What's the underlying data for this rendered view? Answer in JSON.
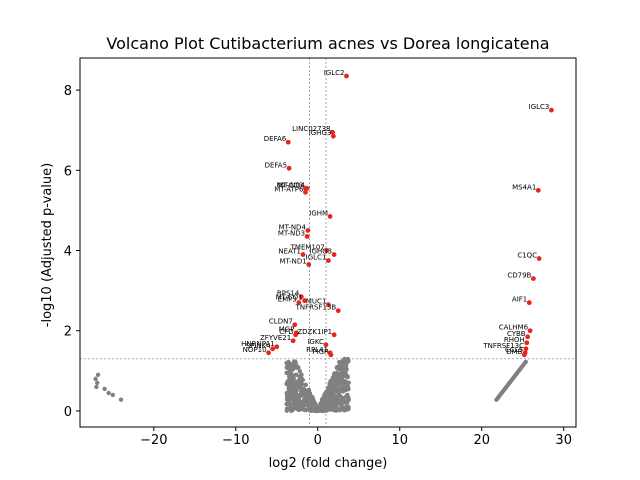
{
  "chart_data": {
    "type": "scatter",
    "title": "Volcano Plot Cutibacterium acnes vs Dorea longicatena",
    "xlabel": "log2 (fold change)",
    "ylabel": "-log10 (Adjusted p-value)",
    "xlim": [
      -29,
      31.5
    ],
    "ylim": [
      -0.4,
      8.8
    ],
    "xticks": [
      -20,
      -10,
      0,
      10,
      20,
      30
    ],
    "yticks": [
      0,
      2,
      4,
      6,
      8
    ],
    "grid": false,
    "thresholds": {
      "pvalue_line_y": 1.3,
      "fold_change_lines_x": [
        -1,
        1
      ]
    },
    "colors": {
      "significant": "#e8251c",
      "not_significant": "#808080",
      "threshold_line": "#808080"
    },
    "significant_genes": [
      {
        "label": "IGLC2",
        "x": 3.5,
        "y": 8.35
      },
      {
        "label": "IGLC3",
        "x": 28.5,
        "y": 7.5
      },
      {
        "label": "LINC02738",
        "x": 1.8,
        "y": 6.95
      },
      {
        "label": "IGHG3",
        "x": 1.9,
        "y": 6.85
      },
      {
        "label": "DEFA6",
        "x": -3.6,
        "y": 6.7
      },
      {
        "label": "DEFA5",
        "x": -3.5,
        "y": 6.05
      },
      {
        "label": "MS4A1",
        "x": 26.9,
        "y": 5.5
      },
      {
        "label": "MT-ND4",
        "x": -1.3,
        "y": 5.55
      },
      {
        "label": "MT-CO3",
        "x": -1.5,
        "y": 5.55
      },
      {
        "label": "MT-ATP6",
        "x": -1.5,
        "y": 5.45
      },
      {
        "label": "IGHM",
        "x": 1.5,
        "y": 4.85
      },
      {
        "label": "MT-ND4",
        "x": -1.2,
        "y": 4.5
      },
      {
        "label": "MT-ND3",
        "x": -1.3,
        "y": 4.35
      },
      {
        "label": "TMEM107",
        "x": 1.1,
        "y": 4.0
      },
      {
        "label": "IGHG3",
        "x": 2.0,
        "y": 3.9
      },
      {
        "label": "NEAT1",
        "x": -1.8,
        "y": 3.9
      },
      {
        "label": "IGLC1",
        "x": 1.3,
        "y": 3.75
      },
      {
        "label": "MT-ND1",
        "x": -1.1,
        "y": 3.65
      },
      {
        "label": "C1QC",
        "x": 27.0,
        "y": 3.8
      },
      {
        "label": "CD79B",
        "x": 26.3,
        "y": 3.3
      },
      {
        "label": "AIF1",
        "x": 25.8,
        "y": 2.7
      },
      {
        "label": "MUC1",
        "x": 1.3,
        "y": 2.65
      },
      {
        "label": "TNFRSF13B",
        "x": 2.5,
        "y": 2.5
      },
      {
        "label": "RPS14",
        "x": -2.0,
        "y": 2.85
      },
      {
        "label": "MT-CO1",
        "x": -1.6,
        "y": 2.75
      },
      {
        "label": "EMP3",
        "x": -2.3,
        "y": 2.7
      },
      {
        "label": "CLDN7",
        "x": -2.8,
        "y": 2.15
      },
      {
        "label": "MGP",
        "x": -2.6,
        "y": 1.95
      },
      {
        "label": "CFD",
        "x": -2.7,
        "y": 1.9
      },
      {
        "label": "ZFYVE21",
        "x": -3.0,
        "y": 1.75
      },
      {
        "label": "ZDZK1IP1",
        "x": 2.0,
        "y": 1.9
      },
      {
        "label": "IGKC",
        "x": 1.0,
        "y": 1.65
      },
      {
        "label": "HNRNPA1",
        "x": -5.0,
        "y": 1.6
      },
      {
        "label": "SPINK4",
        "x": -5.5,
        "y": 1.55
      },
      {
        "label": "NOP10",
        "x": -6.0,
        "y": 1.45
      },
      {
        "label": "RPL41",
        "x": 1.5,
        "y": 1.45
      },
      {
        "label": "PIGR",
        "x": 1.6,
        "y": 1.4
      },
      {
        "label": "CALHM6",
        "x": 25.9,
        "y": 2.0
      },
      {
        "label": "CYBB",
        "x": 25.6,
        "y": 1.85
      },
      {
        "label": "RHOH",
        "x": 25.5,
        "y": 1.7
      },
      {
        "label": "TNFRSF13C",
        "x": 25.4,
        "y": 1.55
      },
      {
        "label": "CCL5",
        "x": 25.3,
        "y": 1.45
      },
      {
        "label": "DMB",
        "x": 25.2,
        "y": 1.4
      }
    ]
  }
}
